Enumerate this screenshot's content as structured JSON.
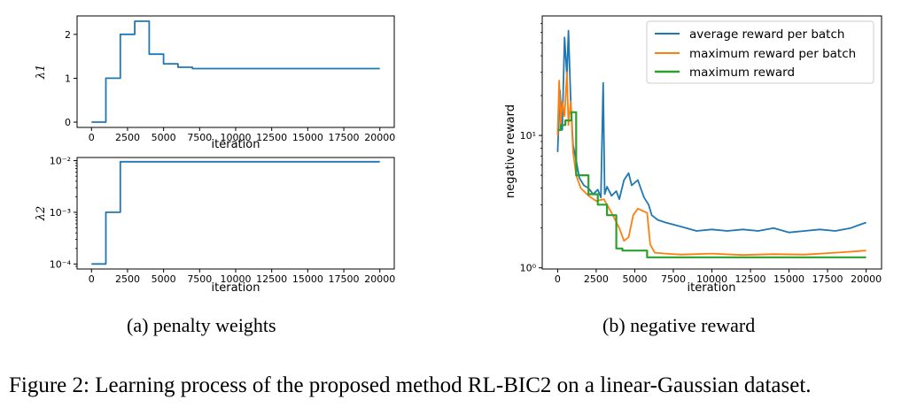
{
  "figure": {
    "caption": "Figure 2: Learning process of the proposed method RL-BIC2 on a linear-Gaussian dataset.",
    "subcaption_a": "(a)  penalty weights",
    "subcaption_b": "(b)  negative reward"
  },
  "chart_data": [
    {
      "type": "line",
      "panel": "a-top",
      "xlabel": "iteration",
      "ylabel": "λ1",
      "xlim": [
        -1000,
        21000
      ],
      "ylim": [
        -0.12,
        2.42
      ],
      "xticks": [
        0,
        2500,
        5000,
        7500,
        10000,
        12500,
        15000,
        17500,
        20000
      ],
      "xtick_labels": [
        "0",
        "2500",
        "5000",
        "7500",
        "10000",
        "12500",
        "15000",
        "17500",
        "20000"
      ],
      "yticks": [
        0,
        1,
        2
      ],
      "ytick_labels": [
        "0",
        "1",
        "2"
      ],
      "series": [
        {
          "color": "#1f77b4",
          "x": [
            0,
            1000,
            1000,
            2000,
            2000,
            3000,
            3000,
            4000,
            4000,
            5000,
            5000,
            6000,
            6000,
            7000,
            7000,
            20000
          ],
          "y": [
            0,
            0,
            1.0,
            1.0,
            2.0,
            2.0,
            2.3,
            2.3,
            1.55,
            1.55,
            1.33,
            1.33,
            1.25,
            1.25,
            1.22,
            1.22
          ]
        }
      ]
    },
    {
      "type": "line",
      "panel": "a-bottom",
      "xlabel": "iteration",
      "ylabel": "λ2",
      "yscale": "log",
      "xlim": [
        -1000,
        21000
      ],
      "ylim": [
        8e-05,
        0.0115
      ],
      "xticks": [
        0,
        2500,
        5000,
        7500,
        10000,
        12500,
        15000,
        17500,
        20000
      ],
      "xtick_labels": [
        "0",
        "2500",
        "5000",
        "7500",
        "10000",
        "12500",
        "15000",
        "17500",
        "20000"
      ],
      "yticks": [
        0.0001,
        0.001,
        0.01
      ],
      "ytick_labels": [
        "10⁻⁴",
        "10⁻³",
        "10⁻²"
      ],
      "series": [
        {
          "color": "#1f77b4",
          "x": [
            0,
            1000,
            1000,
            2000,
            2000,
            20000
          ],
          "y": [
            0.0001,
            0.0001,
            0.001,
            0.001,
            0.0095,
            0.0095
          ]
        }
      ]
    },
    {
      "type": "line",
      "panel": "b",
      "xlabel": "iteration",
      "ylabel": "negative reward",
      "yscale": "log",
      "xlim": [
        -1000,
        21000
      ],
      "ylim": [
        0.98,
        80
      ],
      "xticks": [
        0,
        2500,
        5000,
        7500,
        10000,
        12500,
        15000,
        17500,
        20000
      ],
      "xtick_labels": [
        "0",
        "2500",
        "5000",
        "7500",
        "10000",
        "12500",
        "15000",
        "17500",
        "20000"
      ],
      "yticks": [
        1,
        10
      ],
      "ytick_labels": [
        "10⁰",
        "10¹"
      ],
      "legend": "top-right",
      "series": [
        {
          "name": "average reward per batch",
          "color": "#1f77b4",
          "x": [
            0,
            150,
            300,
            450,
            600,
            700,
            850,
            1000,
            1200,
            1400,
            1700,
            2000,
            2300,
            2600,
            2800,
            2950,
            3050,
            3200,
            3500,
            3800,
            4000,
            4300,
            4600,
            4800,
            5200,
            5600,
            5900,
            6100,
            6500,
            7000,
            8000,
            9000,
            10000,
            11000,
            12000,
            13000,
            14000,
            15000,
            16000,
            17000,
            18000,
            19000,
            19500,
            20000
          ],
          "y": [
            7.5,
            22,
            11,
            55,
            28,
            62,
            18,
            8.5,
            6.5,
            4.8,
            4.2,
            4.0,
            3.6,
            3.9,
            3.4,
            25,
            3.6,
            4.1,
            3.5,
            3.8,
            3.3,
            4.6,
            5.2,
            4.2,
            4.6,
            3.4,
            3.0,
            2.5,
            2.3,
            2.2,
            2.05,
            1.9,
            1.95,
            1.9,
            1.95,
            1.9,
            2.0,
            1.85,
            1.9,
            1.95,
            1.9,
            2.0,
            2.1,
            2.2
          ]
        },
        {
          "name": "maximum reward per batch",
          "color": "#ff7f0e",
          "x": [
            0,
            100,
            200,
            300,
            450,
            600,
            700,
            850,
            1000,
            1200,
            1500,
            2000,
            2500,
            3000,
            3500,
            4000,
            4300,
            4600,
            4900,
            5200,
            5500,
            5800,
            6000,
            6300,
            7000,
            8000,
            10000,
            12000,
            14000,
            16000,
            18000,
            20000
          ],
          "y": [
            10,
            26,
            12,
            18,
            14,
            30,
            12,
            18,
            7.5,
            5.0,
            4.0,
            3.5,
            3.2,
            3.3,
            2.6,
            2.0,
            1.6,
            1.7,
            2.5,
            2.8,
            2.7,
            2.6,
            1.5,
            1.3,
            1.28,
            1.26,
            1.28,
            1.25,
            1.27,
            1.26,
            1.3,
            1.35
          ]
        },
        {
          "name": "maximum reward",
          "color": "#2ca02c",
          "x": [
            0,
            200,
            200,
            500,
            500,
            900,
            900,
            1200,
            1200,
            2000,
            2000,
            2600,
            2600,
            3200,
            3200,
            3800,
            3800,
            4200,
            4200,
            5800,
            5800,
            20000
          ],
          "y": [
            11,
            11,
            12,
            12,
            13,
            13,
            15,
            15,
            5.0,
            5.0,
            3.6,
            3.6,
            3.0,
            3.0,
            2.5,
            2.5,
            1.4,
            1.4,
            1.35,
            1.35,
            1.2,
            1.2
          ]
        }
      ]
    }
  ]
}
